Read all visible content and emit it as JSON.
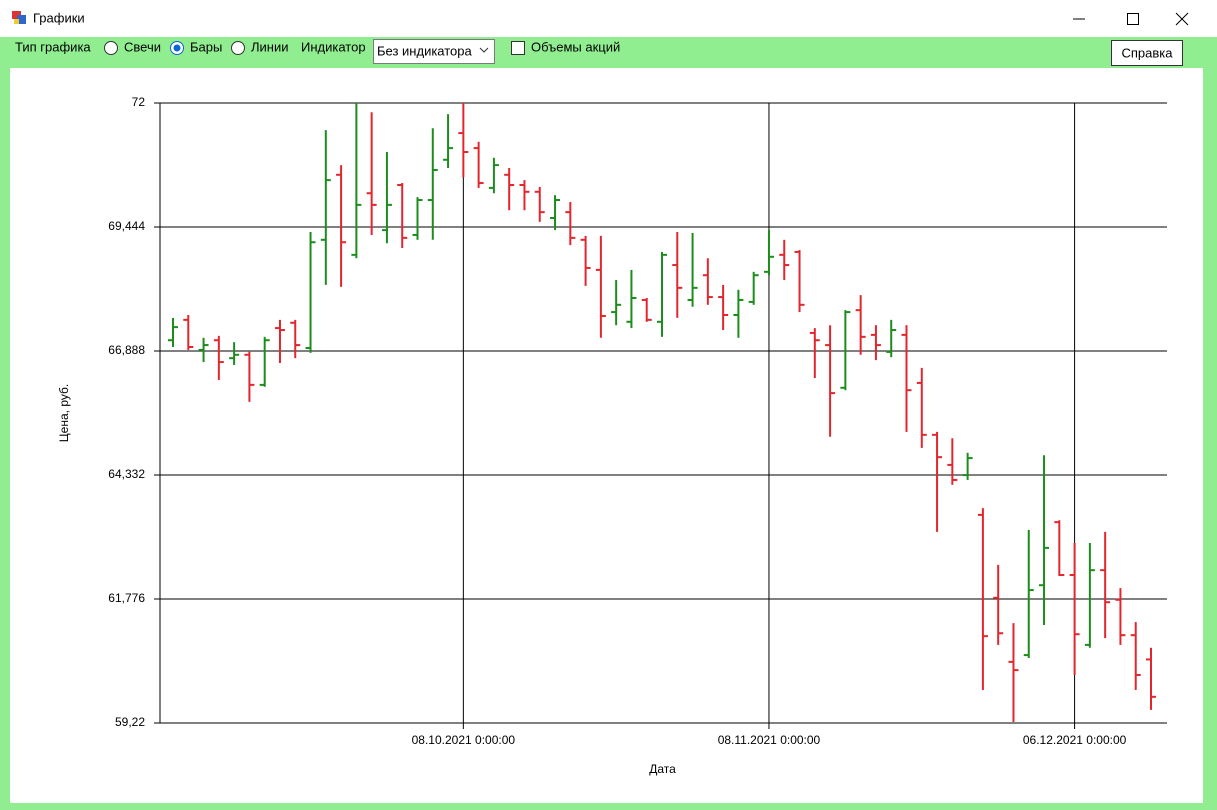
{
  "window": {
    "title": "Графики"
  },
  "toolbar": {
    "chart_type_label": "Тип графика",
    "radios": [
      {
        "label": "Свечи",
        "checked": false
      },
      {
        "label": "Бары",
        "checked": true
      },
      {
        "label": "Линии",
        "checked": false
      }
    ],
    "indicator_label": "Индикатор",
    "indicator_value": "Без индикатора",
    "volumes": {
      "label": "Объемы акций",
      "checked": false
    },
    "help_button": "Справка"
  },
  "chart_data": {
    "type": "ohlc",
    "x_label": "Дата",
    "y_label": "Цена, руб.",
    "up_color": "#1c8c1c",
    "down_color": "#e3262e",
    "grid": true,
    "ylim": [
      59.22,
      72
    ],
    "yticks": [
      {
        "value": 59.22,
        "label": "59,22"
      },
      {
        "value": 61.776,
        "label": "61,776"
      },
      {
        "value": 64.332,
        "label": "64,332"
      },
      {
        "value": 66.888,
        "label": "66,888"
      },
      {
        "value": 69.444,
        "label": "69,444"
      },
      72
    ],
    "categories": [
      null,
      null,
      null,
      null,
      null,
      null,
      null,
      null,
      null,
      null,
      null,
      null,
      null,
      null,
      null,
      null,
      null,
      null,
      null,
      "08.10.2021 0:00:00",
      null,
      null,
      null,
      null,
      null,
      null,
      null,
      null,
      null,
      null,
      null,
      null,
      null,
      null,
      null,
      null,
      null,
      null,
      null,
      "08.11.2021 0:00:00",
      null,
      null,
      null,
      null,
      null,
      null,
      null,
      null,
      null,
      null,
      null,
      null,
      null,
      null,
      null,
      null,
      null,
      null,
      null,
      "06.12.2021 0:00:00",
      null,
      null,
      null,
      null,
      null
    ],
    "open": [
      67.11,
      67.53,
      66.91,
      67.11,
      66.74,
      66.81,
      66.19,
      67.36,
      67.47,
      66.95,
      69.18,
      70.52,
      68.87,
      70.14,
      69.38,
      70.31,
      69.28,
      70.0,
      70.83,
      71.38,
      71.07,
      70.25,
      70.52,
      70.31,
      70.17,
      69.63,
      69.75,
      69.18,
      68.56,
      67.69,
      67.49,
      67.94,
      67.49,
      68.66,
      67.94,
      68.45,
      68.0,
      67.63,
      67.9,
      68.52,
      68.87,
      68.93,
      67.26,
      67.01,
      66.13,
      67.73,
      67.22,
      66.87,
      67.22,
      66.23,
      65.16,
      64.54,
      64.33,
      63.51,
      61.8,
      60.48,
      60.62,
      62.06,
      63.36,
      62.27,
      60.83,
      62.37,
      61.76,
      61.03,
      60.53
    ],
    "high": [
      67.57,
      67.63,
      67.16,
      67.2,
      67.07,
      66.87,
      67.18,
      67.53,
      67.53,
      69.34,
      71.44,
      70.72,
      72.0,
      71.81,
      70.99,
      70.35,
      70.06,
      71.48,
      71.77,
      72.0,
      71.2,
      70.87,
      70.66,
      70.41,
      70.27,
      70.1,
      69.96,
      69.26,
      69.26,
      68.35,
      68.56,
      67.98,
      68.93,
      69.34,
      69.32,
      68.8,
      68.25,
      68.15,
      68.52,
      69.38,
      69.18,
      68.97,
      67.36,
      67.42,
      67.73,
      68.04,
      67.42,
      67.53,
      67.42,
      66.54,
      65.22,
      65.09,
      64.79,
      63.65,
      62.48,
      61.28,
      63.2,
      64.74,
      63.4,
      62.93,
      62.93,
      63.16,
      62.0,
      61.3,
      60.77
    ],
    "low": [
      66.97,
      66.91,
      66.66,
      66.29,
      66.6,
      65.84,
      66.15,
      66.64,
      66.74,
      66.85,
      68.25,
      68.21,
      68.8,
      69.28,
      69.11,
      69.01,
      69.18,
      69.18,
      70.66,
      70.47,
      70.25,
      70.14,
      69.79,
      69.79,
      69.55,
      69.38,
      69.07,
      68.23,
      67.16,
      67.42,
      67.36,
      67.49,
      67.18,
      67.57,
      67.8,
      67.84,
      67.32,
      67.16,
      67.84,
      68.45,
      68.35,
      67.69,
      66.33,
      65.12,
      66.08,
      66.81,
      66.7,
      66.76,
      65.22,
      64.89,
      63.16,
      64.13,
      64.23,
      59.9,
      60.83,
      59.24,
      60.56,
      61.24,
      62.25,
      60.21,
      60.77,
      60.97,
      60.83,
      59.9,
      59.49
    ],
    "close": [
      67.38,
      66.97,
      67.01,
      66.66,
      66.81,
      66.19,
      67.11,
      67.32,
      67.01,
      69.13,
      70.41,
      69.13,
      69.9,
      69.9,
      69.9,
      69.22,
      70.0,
      70.62,
      71.07,
      70.99,
      70.35,
      70.72,
      70.31,
      70.17,
      69.75,
      70.0,
      69.22,
      68.6,
      67.61,
      67.84,
      67.98,
      67.53,
      68.87,
      68.19,
      68.19,
      68.0,
      67.63,
      67.94,
      68.45,
      68.83,
      68.66,
      67.84,
      67.11,
      66.02,
      67.69,
      67.18,
      67.01,
      67.32,
      66.08,
      65.16,
      64.7,
      64.23,
      64.68,
      61.01,
      61.07,
      60.31,
      61.96,
      62.83,
      62.27,
      61.05,
      62.37,
      61.71,
      61.03,
      60.21,
      59.76
    ]
  }
}
